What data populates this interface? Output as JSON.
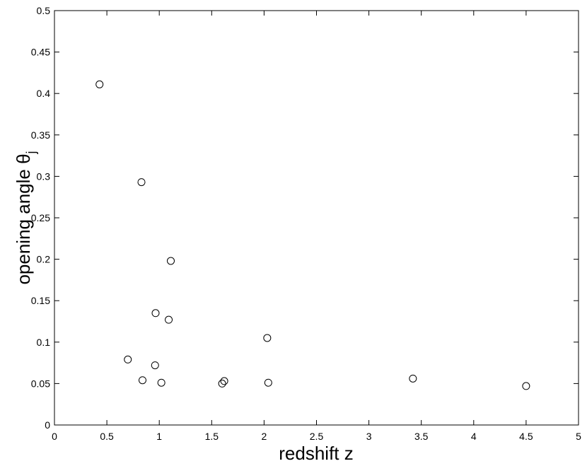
{
  "chart_data": {
    "type": "scatter",
    "xlabel": "redshift z",
    "ylabel": {
      "text": "opening angle θ",
      "subscript": "j"
    },
    "x": [
      0.43,
      0.83,
      1.11,
      0.965,
      1.09,
      2.03,
      0.7,
      0.96,
      0.84,
      1.02,
      1.6,
      1.62,
      2.04,
      3.42,
      4.5
    ],
    "values": [
      0.411,
      0.293,
      0.198,
      0.135,
      0.127,
      0.105,
      0.079,
      0.072,
      0.054,
      0.051,
      0.05,
      0.053,
      0.051,
      0.056,
      0.047
    ],
    "color": "#000000",
    "xlim": [
      0,
      5
    ],
    "ylim": [
      0,
      0.5
    ],
    "xticks": [
      0,
      0.5,
      1,
      1.5,
      2,
      2.5,
      3,
      3.5,
      4,
      4.5,
      5
    ],
    "yticks": [
      0,
      0.05,
      0.1,
      0.15,
      0.2,
      0.25,
      0.3,
      0.35,
      0.4,
      0.45,
      0.5
    ]
  }
}
